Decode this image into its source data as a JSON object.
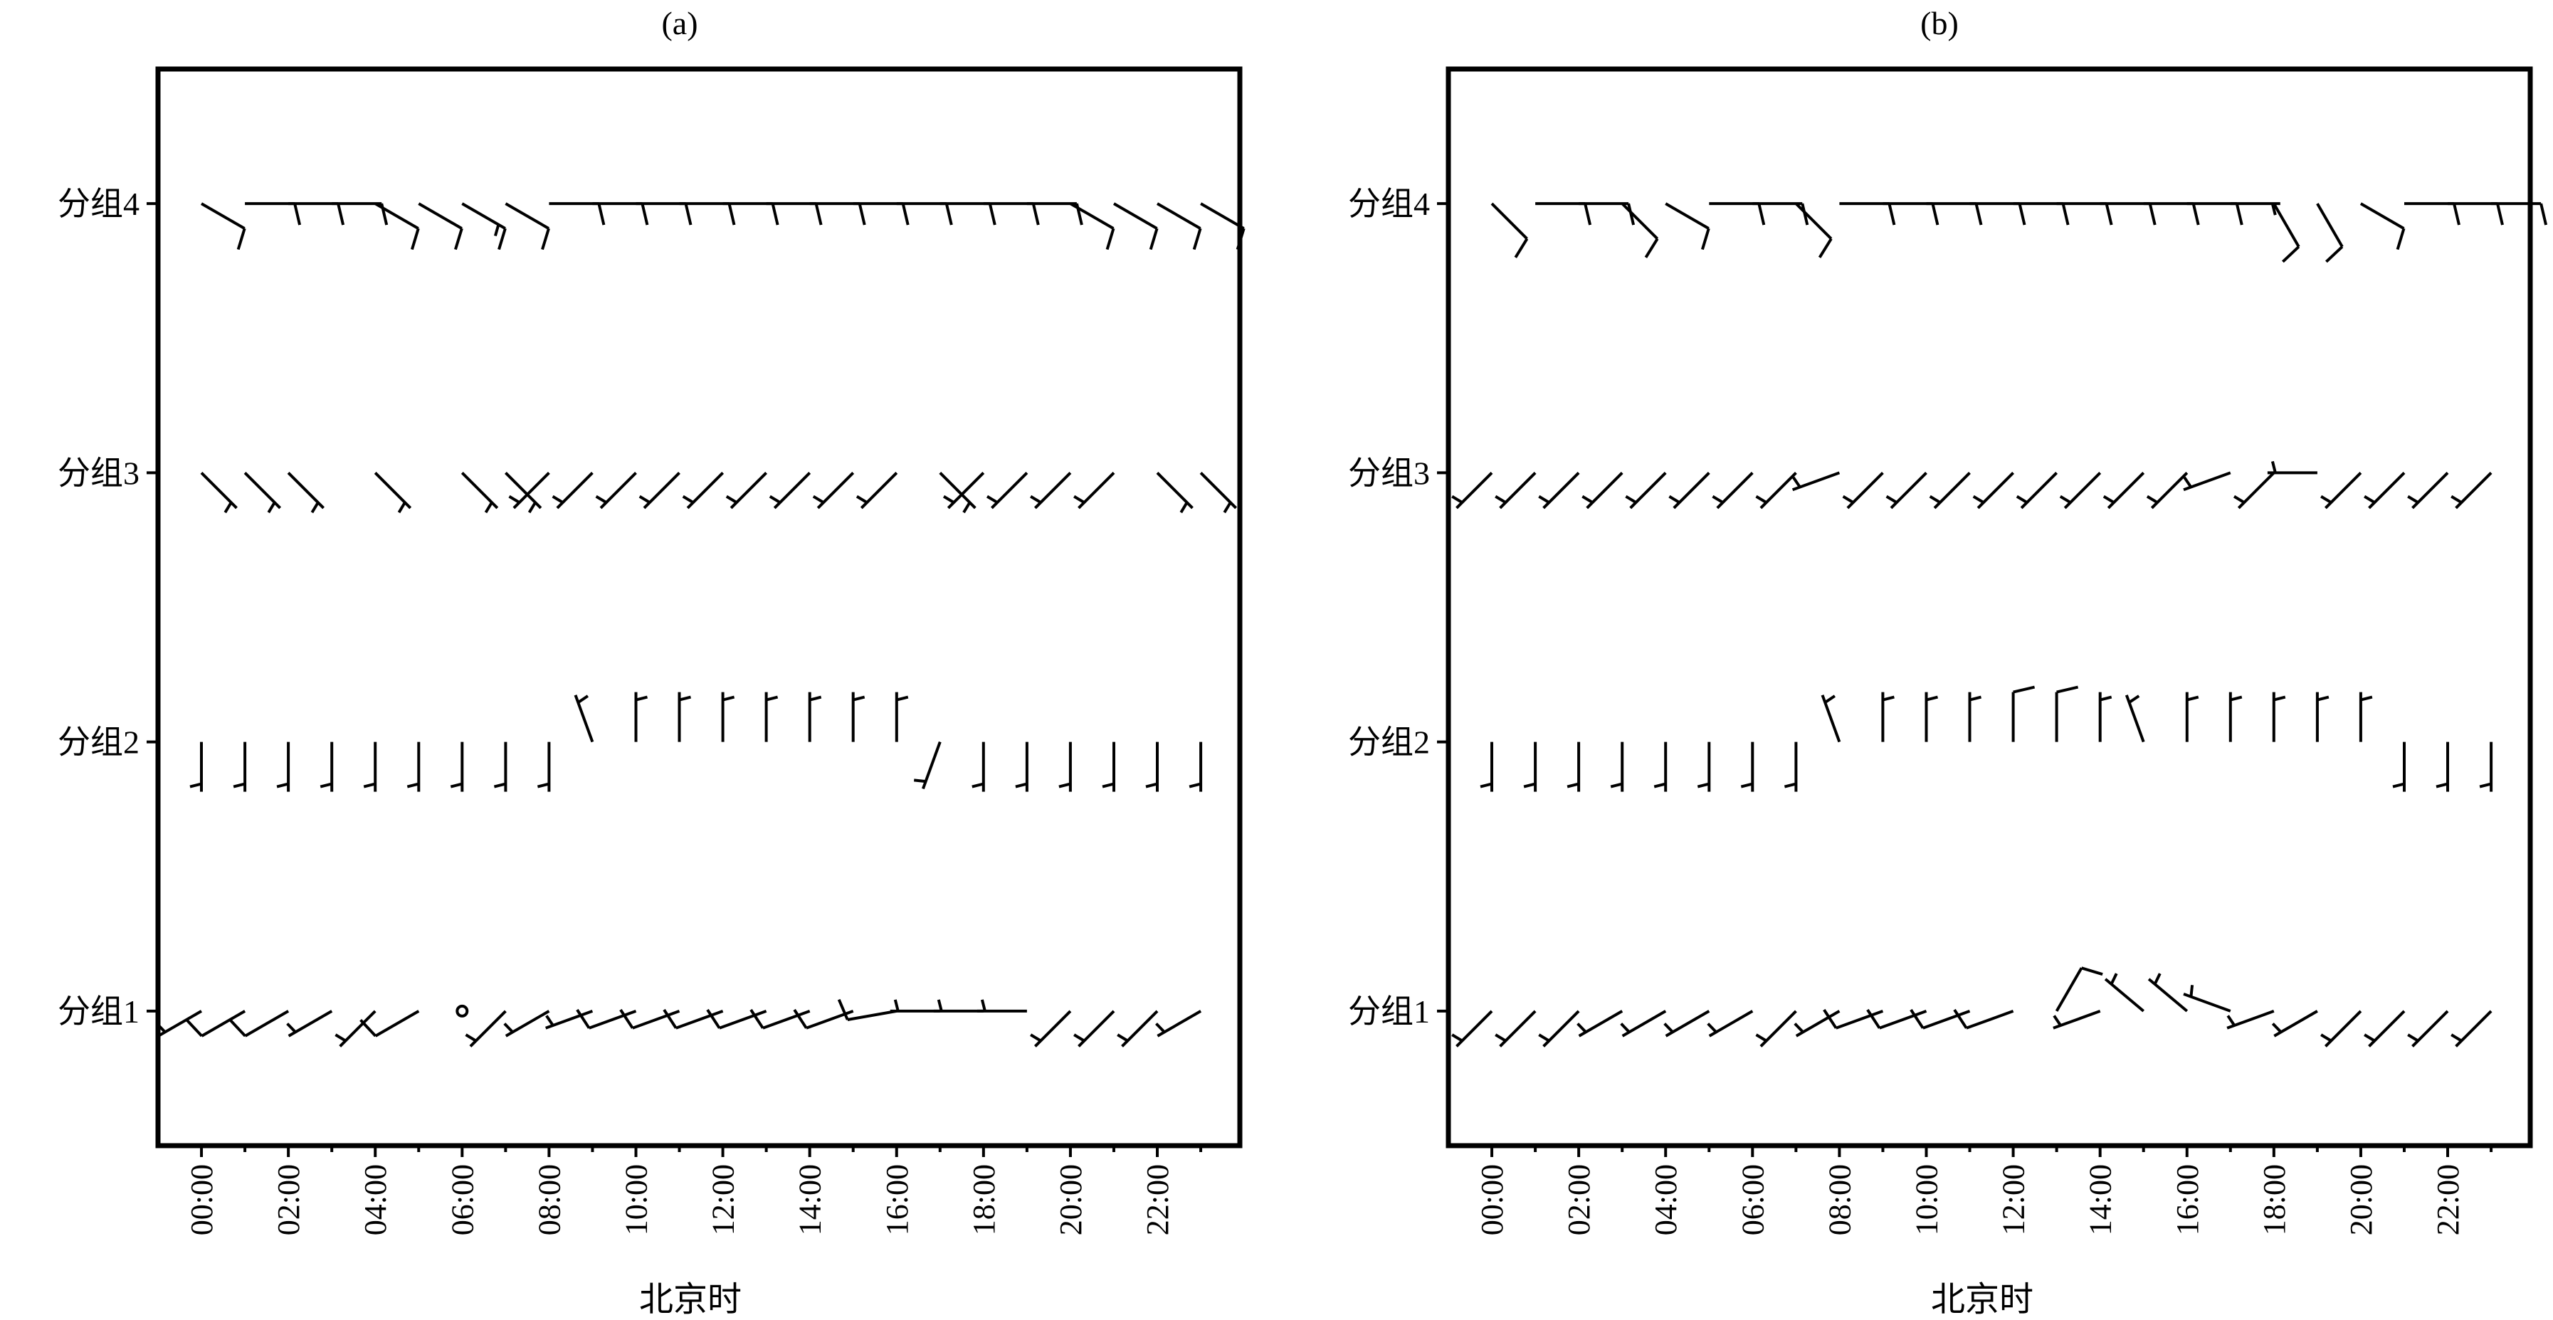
{
  "figure": {
    "panels": [
      {
        "id": "a",
        "title": "(a)"
      },
      {
        "id": "b",
        "title": "(b)"
      }
    ]
  },
  "chart_data": [
    {
      "type": "wind-barb",
      "title": "(a)",
      "xlabel": "北京时",
      "ylabel": "",
      "x_tick_labels": [
        "00:00",
        "02:00",
        "04:00",
        "06:00",
        "08:00",
        "10:00",
        "12:00",
        "14:00",
        "16:00",
        "18:00",
        "20:00",
        "22:00"
      ],
      "x_unit": "hour",
      "xlim": [
        -1,
        23.9
      ],
      "y_categories": [
        "分组1",
        "分组2",
        "分组3",
        "分组4"
      ],
      "ylim": [
        0.5,
        4.5
      ],
      "grid": false,
      "barb_encoding": "direction in degrees the wind blows from; speed in m/s (half barb = 2, full barb = 4)",
      "series": [
        {
          "name": "分组4",
          "y": 4,
          "hours": [
            0,
            1,
            2,
            3,
            4,
            5,
            6,
            7,
            8,
            9,
            10,
            11,
            12,
            13,
            14,
            15,
            16,
            17,
            18,
            19,
            20,
            21,
            22,
            23
          ],
          "direction": [
            120,
            90,
            90,
            90,
            120,
            120,
            120,
            120,
            90,
            90,
            90,
            90,
            90,
            90,
            90,
            90,
            90,
            90,
            90,
            90,
            120,
            120,
            120,
            120
          ],
          "speed": [
            4,
            4,
            4,
            4,
            4,
            4,
            6,
            4,
            4,
            4,
            4,
            4,
            4,
            4,
            4,
            4,
            4,
            4,
            4,
            4,
            4,
            4,
            4,
            4
          ]
        },
        {
          "name": "分组3",
          "y": 3,
          "hours": [
            0,
            1,
            2,
            4,
            6,
            7,
            8,
            9,
            10,
            11,
            12,
            13,
            14,
            15,
            16,
            17,
            18,
            19,
            20,
            21,
            22,
            23
          ],
          "direction": [
            135,
            135,
            135,
            135,
            135,
            135,
            225,
            225,
            225,
            225,
            225,
            225,
            225,
            225,
            225,
            135,
            225,
            225,
            225,
            225,
            135,
            135
          ],
          "speed": [
            2,
            2,
            2,
            2,
            2,
            2,
            2,
            2,
            2,
            2,
            2,
            2,
            2,
            2,
            2,
            2,
            2,
            2,
            2,
            2,
            2,
            2
          ]
        },
        {
          "name": "分组2",
          "y": 2,
          "hours": [
            0,
            1,
            2,
            3,
            4,
            5,
            6,
            7,
            8,
            9,
            10,
            11,
            12,
            13,
            14,
            15,
            16,
            17,
            18,
            19,
            20,
            21,
            22,
            23
          ],
          "direction": [
            180,
            180,
            180,
            180,
            180,
            180,
            180,
            180,
            180,
            340,
            0,
            0,
            0,
            0,
            0,
            0,
            0,
            200,
            180,
            180,
            180,
            180,
            180,
            180
          ],
          "speed": [
            2,
            2,
            2,
            2,
            2,
            2,
            2,
            2,
            2,
            2,
            2,
            2,
            2,
            2,
            2,
            2,
            2,
            2,
            2,
            2,
            2,
            2,
            2,
            2
          ]
        },
        {
          "name": "分组1",
          "y": 1,
          "hours": [
            0,
            1,
            2,
            3,
            4,
            5,
            6,
            7,
            8,
            9,
            10,
            11,
            12,
            13,
            14,
            15,
            16,
            17,
            18,
            19,
            20,
            21,
            22,
            23
          ],
          "direction": [
            240,
            240,
            240,
            240,
            225,
            240,
            0,
            225,
            240,
            250,
            250,
            250,
            250,
            250,
            250,
            250,
            260,
            270,
            270,
            270,
            225,
            225,
            225,
            240
          ],
          "speed": [
            2,
            4,
            4,
            2,
            2,
            4,
            0,
            2,
            2,
            2,
            4,
            4,
            4,
            4,
            4,
            4,
            4,
            2,
            2,
            2,
            2,
            2,
            2,
            2
          ]
        }
      ]
    },
    {
      "type": "wind-barb",
      "title": "(b)",
      "xlabel": "北京时",
      "ylabel": "",
      "x_tick_labels": [
        "00:00",
        "02:00",
        "04:00",
        "06:00",
        "08:00",
        "10:00",
        "12:00",
        "14:00",
        "16:00",
        "18:00",
        "20:00",
        "22:00"
      ],
      "x_unit": "hour",
      "xlim": [
        -1,
        23.9
      ],
      "y_categories": [
        "分组1",
        "分组2",
        "分组3",
        "分组4"
      ],
      "ylim": [
        0.5,
        4.5
      ],
      "grid": false,
      "barb_encoding": "direction in degrees the wind blows from; speed in m/s (half barb = 2, full barb = 4)",
      "series": [
        {
          "name": "分组4",
          "y": 4,
          "hours": [
            0,
            1,
            2,
            3,
            4,
            5,
            6,
            7,
            8,
            9,
            10,
            11,
            12,
            13,
            14,
            15,
            16,
            17,
            18,
            19,
            20,
            21,
            22,
            23
          ],
          "direction": [
            135,
            90,
            90,
            135,
            120,
            90,
            90,
            135,
            90,
            90,
            90,
            90,
            90,
            90,
            90,
            90,
            90,
            90,
            150,
            150,
            120,
            90,
            90,
            90
          ],
          "speed": [
            4,
            4,
            4,
            4,
            4,
            4,
            4,
            4,
            4,
            4,
            4,
            4,
            4,
            4,
            4,
            4,
            4,
            2,
            4,
            4,
            4,
            4,
            4,
            4
          ]
        },
        {
          "name": "分组3",
          "y": 3,
          "hours": [
            0,
            1,
            2,
            3,
            4,
            5,
            6,
            7,
            8,
            9,
            10,
            11,
            12,
            13,
            14,
            15,
            16,
            17,
            18,
            19,
            20,
            21,
            22,
            23
          ],
          "direction": [
            225,
            225,
            225,
            225,
            225,
            225,
            225,
            225,
            250,
            225,
            225,
            225,
            225,
            225,
            225,
            225,
            225,
            250,
            225,
            270,
            225,
            225,
            225,
            225
          ],
          "speed": [
            2,
            2,
            2,
            2,
            2,
            2,
            2,
            2,
            2,
            2,
            2,
            2,
            2,
            2,
            2,
            2,
            2,
            2,
            2,
            2,
            2,
            2,
            2,
            2
          ]
        },
        {
          "name": "分组2",
          "y": 2,
          "hours": [
            0,
            1,
            2,
            3,
            4,
            5,
            6,
            7,
            8,
            9,
            10,
            11,
            12,
            13,
            14,
            15,
            16,
            17,
            18,
            19,
            20,
            21,
            22,
            23
          ],
          "direction": [
            180,
            180,
            180,
            180,
            180,
            180,
            180,
            180,
            340,
            0,
            0,
            0,
            0,
            0,
            0,
            340,
            0,
            0,
            0,
            0,
            0,
            180,
            180,
            180
          ],
          "speed": [
            2,
            2,
            2,
            2,
            2,
            2,
            2,
            2,
            2,
            2,
            2,
            2,
            4,
            4,
            2,
            2,
            2,
            2,
            2,
            2,
            2,
            2,
            2,
            2
          ]
        },
        {
          "name": "分组1",
          "y": 1,
          "hours": [
            0,
            1,
            2,
            3,
            4,
            5,
            6,
            7,
            8,
            9,
            10,
            11,
            12,
            13,
            14,
            15,
            16,
            17,
            18,
            19,
            20,
            21,
            22,
            23
          ],
          "direction": [
            225,
            225,
            225,
            240,
            240,
            240,
            240,
            225,
            240,
            250,
            250,
            250,
            250,
            30,
            250,
            310,
            310,
            290,
            250,
            240,
            225,
            225,
            225,
            225
          ],
          "speed": [
            2,
            2,
            2,
            2,
            2,
            2,
            2,
            2,
            2,
            4,
            4,
            4,
            4,
            4,
            2,
            2,
            2,
            2,
            2,
            2,
            2,
            2,
            2,
            2
          ]
        }
      ]
    }
  ]
}
